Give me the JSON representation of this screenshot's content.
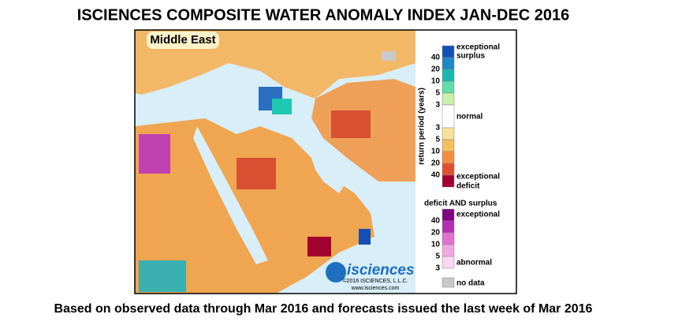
{
  "title": "ISCIENCES COMPOSITE WATER ANOMALY INDEX JAN-DEC 2016",
  "map": {
    "region_label": "Middle East",
    "logo": "isciences",
    "copyright": "©2016 ISCIENCES, L.L.C.",
    "url": "www.isciences.com"
  },
  "legend": {
    "axis_label": "return period (years)",
    "surplus_label": [
      "exceptional",
      "surplus"
    ],
    "surplus_ticks": [
      "40",
      "20",
      "10",
      "5",
      "3"
    ],
    "normal_label": "normal",
    "deficit_ticks": [
      "3",
      "5",
      "10",
      "20",
      "40"
    ],
    "deficit_label": [
      "exceptional",
      "deficit"
    ],
    "combined_title": "deficit AND surplus",
    "combined_top": "exceptional",
    "combined_ticks": [
      "40",
      "20",
      "10",
      "5",
      "3"
    ],
    "combined_bottom": "abnormal",
    "no_data": "no data"
  },
  "footer": "Based on observed data through Mar 2016 and forecasts issued the last week of Mar 2016"
}
